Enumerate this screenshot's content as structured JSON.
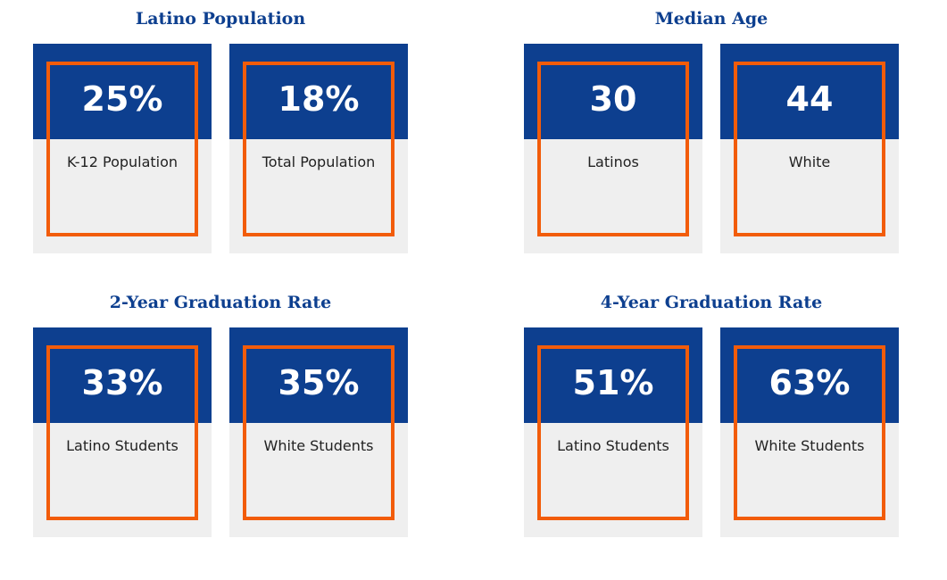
{
  "colors": {
    "title": "#0d3f8f",
    "card_top": "#0d3f8f",
    "card_bottom": "#efefef",
    "highlight_border": "#f25c0a"
  },
  "groups": [
    {
      "title": "Latino Population",
      "cards": [
        {
          "value": "25%",
          "label": "K-12 Population"
        },
        {
          "value": "18%",
          "label": "Total Population"
        }
      ]
    },
    {
      "title": "Median Age",
      "cards": [
        {
          "value": "30",
          "label": "Latinos"
        },
        {
          "value": "44",
          "label": "White"
        }
      ]
    },
    {
      "title": "2-Year Graduation Rate",
      "cards": [
        {
          "value": "33%",
          "label": "Latino Students"
        },
        {
          "value": "35%",
          "label": "White Students"
        }
      ]
    },
    {
      "title": "4-Year Graduation Rate",
      "cards": [
        {
          "value": "51%",
          "label": "Latino Students"
        },
        {
          "value": "63%",
          "label": "White Students"
        }
      ]
    }
  ]
}
